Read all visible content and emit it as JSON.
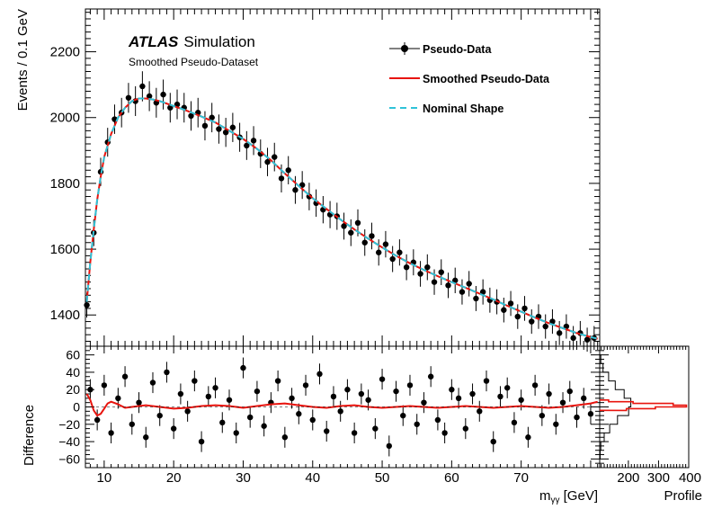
{
  "chart_data": {
    "type": "scatter",
    "experiment_label": "ATLAS",
    "experiment_sublabel": "Simulation",
    "dataset_label": "Smoothed Pseudo-Dataset",
    "xlabel_prefix": "m",
    "xlabel_subscript": "γγ",
    "xlabel_suffix": " [GeV]",
    "ylabel_main": "Events / 0.1 GeV",
    "ylabel_ratio": "Difference",
    "profile_label": "Profile",
    "xlim": [
      7.3,
      81.3
    ],
    "ylim_main": [
      1305,
      2330
    ],
    "ylim_ratio": [
      -70,
      70
    ],
    "profile_xlim": [
      105,
      400
    ],
    "x_ticks": [
      "10",
      "20",
      "30",
      "40",
      "50",
      "60",
      "70"
    ],
    "y_ticks_main": [
      "1400",
      "1600",
      "1800",
      "2000",
      "2200"
    ],
    "y_ticks_ratio": [
      "−60",
      "−40",
      "−20",
      "0",
      "20",
      "40",
      "60"
    ],
    "profile_ticks": [
      "200",
      "300",
      "400"
    ],
    "legend": {
      "position": "top-right",
      "entries": [
        "Pseudo-Data",
        "Smoothed Pseudo-Data",
        "Nominal Shape"
      ]
    },
    "colors": {
      "data": "#000000",
      "smoothed": "#e8140e",
      "nominal": "#2fc3d8"
    },
    "nominal_shape": {
      "x": [
        7.5,
        8.0,
        8.5,
        9.0,
        9.5,
        10.0,
        11.0,
        12.0,
        13.0,
        14.0,
        15.0,
        16.0,
        17.0,
        18.0,
        20.0,
        22.0,
        24.0,
        26.0,
        28.0,
        30.0,
        32.0,
        34.0,
        36.0,
        38.0,
        40.0,
        42.0,
        44.0,
        46.0,
        48.0,
        50.0,
        52.0,
        54.0,
        56.0,
        58.0,
        60.0,
        62.0,
        64.0,
        66.0,
        68.0,
        70.0,
        72.0,
        74.0,
        76.0,
        78.0,
        80.0,
        81.0
      ],
      "y": [
        1440,
        1560,
        1660,
        1750,
        1820,
        1880,
        1950,
        2000,
        2030,
        2050,
        2058,
        2058,
        2055,
        2050,
        2035,
        2020,
        2003,
        1985,
        1960,
        1935,
        1905,
        1870,
        1830,
        1792,
        1755,
        1722,
        1690,
        1660,
        1632,
        1605,
        1580,
        1557,
        1537,
        1518,
        1500,
        1483,
        1465,
        1447,
        1428,
        1410,
        1392,
        1375,
        1360,
        1345,
        1333,
        1328
      ]
    },
    "pseudo_data": {
      "x": [
        7.5,
        8.5,
        9.5,
        10.5,
        11.5,
        12.5,
        13.5,
        14.5,
        15.5,
        16.5,
        17.5,
        18.5,
        19.5,
        20.5,
        21.5,
        22.5,
        23.5,
        24.5,
        25.5,
        26.5,
        27.5,
        28.5,
        29.5,
        30.5,
        31.5,
        32.5,
        33.5,
        34.5,
        35.5,
        36.5,
        37.5,
        38.5,
        39.5,
        40.5,
        41.5,
        42.5,
        43.5,
        44.5,
        45.5,
        46.5,
        47.5,
        48.5,
        49.5,
        50.5,
        51.5,
        52.5,
        53.5,
        54.5,
        55.5,
        56.5,
        57.5,
        58.5,
        59.5,
        60.5,
        61.5,
        62.5,
        63.5,
        64.5,
        65.5,
        66.5,
        67.5,
        68.5,
        69.5,
        70.5,
        71.5,
        72.5,
        73.5,
        74.5,
        75.5,
        76.5,
        77.5,
        78.5,
        79.5,
        80.5
      ],
      "y": [
        1430,
        1650,
        1835,
        1925,
        1995,
        2015,
        2060,
        2050,
        2095,
        2065,
        2045,
        2070,
        2030,
        2040,
        2030,
        2005,
        2015,
        1975,
        2000,
        1965,
        1955,
        1970,
        1940,
        1915,
        1930,
        1890,
        1865,
        1880,
        1815,
        1840,
        1780,
        1795,
        1760,
        1740,
        1720,
        1705,
        1700,
        1670,
        1650,
        1680,
        1620,
        1640,
        1590,
        1615,
        1570,
        1590,
        1545,
        1560,
        1525,
        1545,
        1500,
        1530,
        1490,
        1505,
        1470,
        1495,
        1450,
        1470,
        1445,
        1440,
        1415,
        1435,
        1395,
        1420,
        1380,
        1395,
        1365,
        1380,
        1345,
        1365,
        1330,
        1345,
        1325,
        1330
      ]
    },
    "difference_data": {
      "x": [
        8.0,
        9.0,
        10.0,
        11.0,
        12.0,
        13.0,
        14.0,
        15.0,
        16.0,
        17.0,
        18.0,
        19.0,
        20.0,
        21.0,
        22.0,
        23.0,
        24.0,
        25.0,
        26.0,
        27.0,
        28.0,
        29.0,
        30.0,
        31.0,
        32.0,
        33.0,
        34.0,
        35.0,
        36.0,
        37.0,
        38.0,
        39.0,
        40.0,
        41.0,
        42.0,
        43.0,
        44.0,
        45.0,
        46.0,
        47.0,
        48.0,
        49.0,
        50.0,
        51.0,
        52.0,
        53.0,
        54.0,
        55.0,
        56.0,
        57.0,
        58.0,
        59.0,
        60.0,
        61.0,
        62.0,
        63.0,
        64.0,
        65.0,
        66.0,
        67.0,
        68.0,
        69.0,
        70.0,
        71.0,
        72.0,
        73.0,
        74.0,
        75.0,
        76.0,
        77.0,
        78.0,
        79.0,
        80.0
      ],
      "y": [
        20,
        -15,
        25,
        -30,
        10,
        35,
        -20,
        5,
        -35,
        28,
        -10,
        40,
        -25,
        15,
        -5,
        30,
        -40,
        12,
        22,
        -18,
        8,
        -30,
        45,
        -12,
        18,
        -22,
        5,
        30,
        -35,
        10,
        -8,
        25,
        -15,
        38,
        -28,
        12,
        -5,
        20,
        -30,
        15,
        8,
        -25,
        32,
        -45,
        18,
        -10,
        25,
        -20,
        5,
        35,
        -15,
        -30,
        20,
        10,
        -25,
        15,
        -5,
        30,
        -40,
        12,
        22,
        -18,
        8,
        -35,
        25,
        -10,
        15,
        -20,
        5,
        18,
        -12,
        10,
        -8
      ]
    },
    "smoothed_difference": {
      "x": [
        7.5,
        8.0,
        8.5,
        9.0,
        9.5,
        10.0,
        10.5,
        11.0,
        12.0,
        13.0,
        14.0,
        15.0,
        16.0,
        18.0,
        20.0,
        22.0,
        24.0,
        26.0,
        28.0,
        30.0,
        32.0,
        34.0,
        36.0,
        38.0,
        40.0,
        42.0,
        44.0,
        46.0,
        48.0,
        50.0,
        52.0,
        54.0,
        56.0,
        58.0,
        60.0,
        62.0,
        64.0,
        66.0,
        68.0,
        70.0,
        72.0,
        74.0,
        76.0,
        78.0,
        80.0,
        81.0
      ],
      "y": [
        15,
        8,
        -4,
        -10,
        -8,
        -2,
        4,
        6,
        3,
        -1,
        0,
        1,
        2,
        0,
        -2,
        -1,
        1,
        2,
        1,
        -1,
        1,
        3,
        4,
        2,
        0,
        -1,
        1,
        2,
        0,
        -1,
        0,
        1,
        0,
        -1,
        0,
        1,
        0,
        -1,
        0,
        1,
        0,
        -1,
        0,
        2,
        4,
        6
      ]
    },
    "profile": {
      "bin_edges": [
        -70,
        -60,
        -50,
        -40,
        -30,
        -20,
        -10,
        0,
        10,
        20,
        30,
        40,
        50,
        60,
        70
      ],
      "data_counts": [
        0,
        2,
        5,
        20,
        45,
        80,
        130,
        140,
        110,
        70,
        40,
        15,
        5,
        0
      ],
      "smoothed_bin_edges": [
        -4,
        -2,
        0,
        2,
        4,
        6,
        8
      ],
      "smoothed_counts": [
        120,
        250,
        390,
        330,
        150,
        40
      ]
    }
  }
}
